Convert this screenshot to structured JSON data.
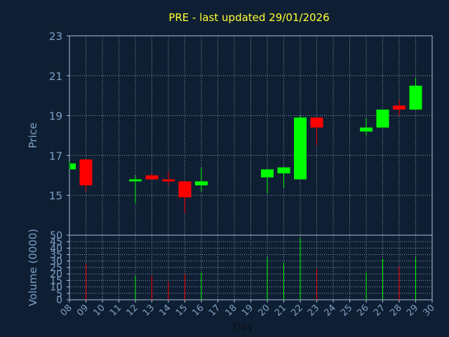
{
  "chart_data": {
    "type": "candlestick",
    "title": "PRE - last updated 29/01/2026",
    "xlabel": "Day",
    "price_panel": {
      "ylabel": "Price",
      "ylim": [
        13,
        23
      ],
      "yticks": [
        "15",
        "17",
        "19",
        "21",
        "23"
      ]
    },
    "volume_panel": {
      "ylabel": "Volume (0000)",
      "ylim": [
        0,
        50
      ],
      "yticks": [
        "0",
        "5",
        "10",
        "15",
        "20",
        "25",
        "30",
        "35",
        "40",
        "45",
        "50"
      ]
    },
    "x_ticks": [
      "08",
      "09",
      "10",
      "11",
      "12",
      "13",
      "14",
      "15",
      "16",
      "17",
      "18",
      "19",
      "20",
      "21",
      "22",
      "23",
      "24",
      "25",
      "26",
      "27",
      "28",
      "29",
      "30"
    ],
    "x_range": [
      8,
      30
    ],
    "grid": true,
    "colors": {
      "up": "#00ff00",
      "down": "#ff0000",
      "grid": "#8899aa",
      "axis": "#a9bfd6",
      "text": "#7da0c4",
      "title": "#ffff33"
    },
    "candles": [
      {
        "day": 8,
        "open": 16.3,
        "close": 16.6,
        "high": 16.7,
        "low": 16.3,
        "volume": 0
      },
      {
        "day": 9,
        "open": 16.8,
        "close": 15.5,
        "high": 16.8,
        "low": 15.2,
        "volume": 28
      },
      {
        "day": 12,
        "open": 15.7,
        "close": 15.8,
        "high": 16.0,
        "low": 14.6,
        "volume": 19
      },
      {
        "day": 13,
        "open": 16.0,
        "close": 15.8,
        "high": 16.1,
        "low": 15.8,
        "volume": 19
      },
      {
        "day": 14,
        "open": 15.8,
        "close": 15.7,
        "high": 16.2,
        "low": 15.5,
        "volume": 14
      },
      {
        "day": 15,
        "open": 15.7,
        "close": 14.9,
        "high": 15.7,
        "low": 14.1,
        "volume": 20
      },
      {
        "day": 16,
        "open": 15.5,
        "close": 15.7,
        "high": 16.4,
        "low": 15.2,
        "volume": 21
      },
      {
        "day": 20,
        "open": 15.9,
        "close": 16.3,
        "high": 16.3,
        "low": 15.1,
        "volume": 33
      },
      {
        "day": 21,
        "open": 16.1,
        "close": 16.4,
        "high": 16.4,
        "low": 15.4,
        "volume": 29
      },
      {
        "day": 22,
        "open": 15.8,
        "close": 18.9,
        "high": 19.0,
        "low": 15.8,
        "volume": 48
      },
      {
        "day": 23,
        "open": 18.9,
        "close": 18.4,
        "high": 18.9,
        "low": 17.5,
        "volume": 24
      },
      {
        "day": 26,
        "open": 18.2,
        "close": 18.4,
        "high": 18.9,
        "low": 18.0,
        "volume": 21
      },
      {
        "day": 27,
        "open": 18.4,
        "close": 19.3,
        "high": 19.3,
        "low": 18.4,
        "volume": 32
      },
      {
        "day": 28,
        "open": 19.5,
        "close": 19.3,
        "high": 19.8,
        "low": 19.0,
        "volume": 26
      },
      {
        "day": 29,
        "open": 19.3,
        "close": 20.5,
        "high": 20.9,
        "low": 19.3,
        "volume": 33
      }
    ]
  }
}
